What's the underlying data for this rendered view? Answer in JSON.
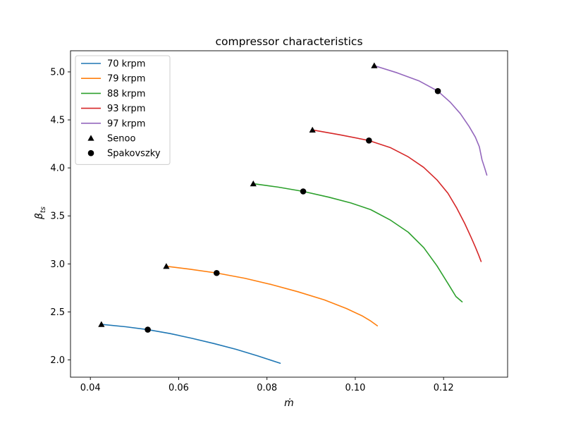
{
  "chart_data": {
    "type": "line",
    "title": "compressor characteristics",
    "xlabel": "ṁ",
    "ylabel": {
      "base": "β",
      "subscript": "ts"
    },
    "xlim": [
      0.0355,
      0.1345
    ],
    "ylim": [
      1.82,
      5.22
    ],
    "xticks": [
      0.04,
      0.06,
      0.08,
      0.1,
      0.12
    ],
    "xtick_labels": [
      "0.04",
      "0.06",
      "0.08",
      "0.10",
      "0.12"
    ],
    "yticks": [
      2.0,
      2.5,
      3.0,
      3.5,
      4.0,
      4.5,
      5.0
    ],
    "ytick_labels": [
      "2.0",
      "2.5",
      "3.0",
      "3.5",
      "4.0",
      "4.5",
      "5.0"
    ],
    "grid": false,
    "legend_position": "top-left",
    "series": [
      {
        "name": "70 krpm",
        "color": "#1f77b4",
        "x": [
          0.0425,
          0.048,
          0.053,
          0.058,
          0.063,
          0.068,
          0.073,
          0.078,
          0.083
        ],
        "y": [
          2.37,
          2.345,
          2.315,
          2.275,
          2.225,
          2.17,
          2.11,
          2.04,
          1.965
        ]
      },
      {
        "name": "79 krpm",
        "color": "#ff7f0e",
        "x": [
          0.0572,
          0.0625,
          0.0686,
          0.075,
          0.081,
          0.087,
          0.093,
          0.098,
          0.1015,
          0.1035,
          0.105
        ],
        "y": [
          2.975,
          2.945,
          2.905,
          2.85,
          2.785,
          2.71,
          2.625,
          2.535,
          2.46,
          2.405,
          2.355
        ]
      },
      {
        "name": "88 krpm",
        "color": "#2ca02c",
        "x": [
          0.0769,
          0.0825,
          0.0882,
          0.094,
          0.099,
          0.1035,
          0.108,
          0.112,
          0.1155,
          0.1185,
          0.121,
          0.1228,
          0.1242
        ],
        "y": [
          3.835,
          3.8,
          3.755,
          3.695,
          3.635,
          3.565,
          3.455,
          3.33,
          3.17,
          2.98,
          2.795,
          2.66,
          2.605
        ]
      },
      {
        "name": "93 krpm",
        "color": "#d62728",
        "x": [
          0.0903,
          0.0965,
          0.1031,
          0.108,
          0.112,
          0.1155,
          0.1185,
          0.121,
          0.123,
          0.1248,
          0.1262,
          0.1272,
          0.128,
          0.1285
        ],
        "y": [
          4.395,
          4.345,
          4.285,
          4.21,
          4.115,
          4.005,
          3.875,
          3.735,
          3.58,
          3.42,
          3.28,
          3.175,
          3.085,
          3.025
        ]
      },
      {
        "name": "97 krpm",
        "color": "#9467bd",
        "x": [
          0.1043,
          0.1095,
          0.1145,
          0.1187,
          0.1215,
          0.1238,
          0.1258,
          0.1272,
          0.1281,
          0.1287,
          0.1293,
          0.1298
        ],
        "y": [
          5.065,
          4.99,
          4.905,
          4.8,
          4.685,
          4.565,
          4.43,
          4.32,
          4.22,
          4.085,
          4.0,
          3.925
        ]
      }
    ],
    "markers": [
      {
        "name": "Senoo",
        "shape": "triangle",
        "color": "#000000",
        "x": [
          0.0425,
          0.0572,
          0.0769,
          0.0903,
          0.1043
        ],
        "y": [
          2.37,
          2.975,
          3.835,
          4.395,
          5.065
        ]
      },
      {
        "name": "Spakovszky",
        "shape": "circle",
        "color": "#000000",
        "x": [
          0.053,
          0.0686,
          0.0882,
          0.1031,
          0.1187
        ],
        "y": [
          2.315,
          2.905,
          3.755,
          4.285,
          4.8
        ]
      }
    ]
  }
}
